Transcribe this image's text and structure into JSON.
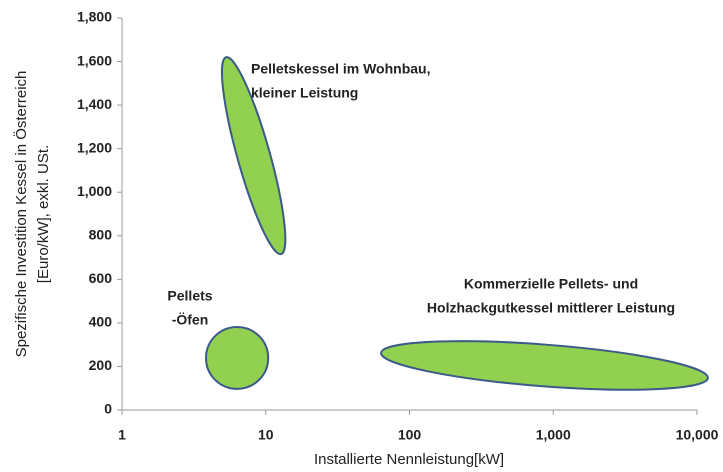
{
  "chart_data": {
    "type": "ellipse",
    "xlabel": "Installierte Nennleistung[kW]",
    "ylabel": [
      "Spezifische Investition Kessel in Österreich",
      "[Euro/kW], exkl. USt."
    ],
    "xscale": "log",
    "xlim": [
      1,
      10000
    ],
    "xticks": [
      1,
      10,
      100,
      {
        "value": 1000,
        "label": "1,000"
      },
      {
        "value": 10000,
        "label": "10,000"
      }
    ],
    "ylim": [
      0,
      1800
    ],
    "yticks": [
      0,
      200,
      400,
      600,
      800,
      {
        "value": 1000,
        "label": "1,000"
      },
      {
        "value": 1200,
        "label": "1,200"
      },
      {
        "value": 1400,
        "label": "1,400"
      },
      {
        "value": 1600,
        "label": "1,600"
      },
      {
        "value": 1800,
        "label": "1,800"
      }
    ],
    "grid": false,
    "color": "#92d050",
    "edgecolor": "#3b5a8a",
    "regions": [
      {
        "name": [
          "Pelletskessel im Wohnbau,",
          "kleiner Leistung"
        ],
        "major": [
          [
            5.3,
            1620
          ],
          [
            12.8,
            716
          ]
        ],
        "minor": [
          6.4,
          1149
        ]
      },
      {
        "name": [
          "Pellets",
          "-Öfen"
        ],
        "major": [
          [
            3.84,
            239
          ],
          [
            10.4,
            239
          ]
        ],
        "minor": [
          6.3,
          381
        ]
      },
      {
        "name": [
          "Kommerzielle Pellets- und",
          "Holzhackgutkessel mittlerer Leistung"
        ],
        "major": [
          [
            63.4,
            262
          ],
          [
            11900,
            147
          ]
        ],
        "minor": [
          848,
          301
        ]
      }
    ]
  }
}
